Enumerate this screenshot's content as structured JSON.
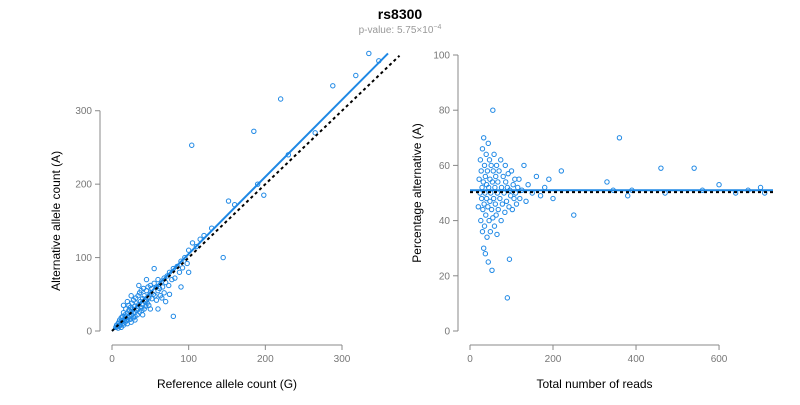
{
  "title": "rs8300",
  "subtitle": {
    "prefix": "p-value: 5.75×10",
    "exponent": "−4"
  },
  "colors": {
    "points": "#1e88e5",
    "fit_line": "#1e88e5",
    "reference_line": "#000000",
    "axis": "#888888"
  },
  "chart_data": [
    {
      "type": "scatter",
      "xlabel": "Reference allele count (G)",
      "ylabel": "Alternative allele count (A)",
      "xlim": [
        0,
        360
      ],
      "ylim": [
        0,
        380
      ],
      "xticks": [
        0,
        100,
        200,
        300
      ],
      "yticks": [
        0,
        100,
        200,
        300
      ],
      "grid": false,
      "points": [
        [
          5,
          5
        ],
        [
          6,
          8
        ],
        [
          7,
          6
        ],
        [
          8,
          10
        ],
        [
          8,
          4
        ],
        [
          9,
          12
        ],
        [
          10,
          7
        ],
        [
          10,
          15
        ],
        [
          11,
          9
        ],
        [
          12,
          18
        ],
        [
          12,
          5
        ],
        [
          13,
          14
        ],
        [
          14,
          20
        ],
        [
          14,
          10
        ],
        [
          15,
          8
        ],
        [
          15,
          25
        ],
        [
          16,
          16
        ],
        [
          17,
          12
        ],
        [
          17,
          22
        ],
        [
          18,
          19
        ],
        [
          18,
          30
        ],
        [
          19,
          14
        ],
        [
          20,
          24
        ],
        [
          20,
          10
        ],
        [
          21,
          18
        ],
        [
          22,
          28
        ],
        [
          22,
          35
        ],
        [
          23,
          20
        ],
        [
          24,
          16
        ],
        [
          24,
          32
        ],
        [
          25,
          26
        ],
        [
          25,
          12
        ],
        [
          26,
          38
        ],
        [
          26,
          22
        ],
        [
          27,
          30
        ],
        [
          28,
          18
        ],
        [
          28,
          42
        ],
        [
          29,
          25
        ],
        [
          30,
          34
        ],
        [
          30,
          20
        ],
        [
          31,
          45
        ],
        [
          32,
          28
        ],
        [
          32,
          38
        ],
        [
          33,
          22
        ],
        [
          34,
          48
        ],
        [
          34,
          30
        ],
        [
          35,
          36
        ],
        [
          36,
          26
        ],
        [
          36,
          52
        ],
        [
          37,
          40
        ],
        [
          38,
          32
        ],
        [
          38,
          55
        ],
        [
          39,
          28
        ],
        [
          40,
          44
        ],
        [
          40,
          36
        ],
        [
          41,
          58
        ],
        [
          42,
          30
        ],
        [
          42,
          48
        ],
        [
          43,
          40
        ],
        [
          44,
          34
        ],
        [
          45,
          55
        ],
        [
          45,
          42
        ],
        [
          46,
          38
        ],
        [
          47,
          60
        ],
        [
          48,
          45
        ],
        [
          48,
          35
        ],
        [
          50,
          52
        ],
        [
          50,
          62
        ],
        [
          52,
          44
        ],
        [
          52,
          58
        ],
        [
          54,
          50
        ],
        [
          55,
          65
        ],
        [
          56,
          48
        ],
        [
          58,
          60
        ],
        [
          58,
          42
        ],
        [
          60,
          55
        ],
        [
          60,
          70
        ],
        [
          62,
          58
        ],
        [
          63,
          48
        ],
        [
          65,
          68
        ],
        [
          66,
          60
        ],
        [
          68,
          72
        ],
        [
          68,
          52
        ],
        [
          70,
          66
        ],
        [
          72,
          75
        ],
        [
          74,
          62
        ],
        [
          75,
          80
        ],
        [
          78,
          70
        ],
        [
          80,
          85
        ],
        [
          82,
          72
        ],
        [
          85,
          88
        ],
        [
          88,
          80
        ],
        [
          90,
          95
        ],
        [
          92,
          86
        ],
        [
          95,
          100
        ],
        [
          98,
          92
        ],
        [
          100,
          110
        ],
        [
          105,
          120
        ],
        [
          110,
          115
        ],
        [
          115,
          125
        ],
        [
          120,
          130
        ],
        [
          130,
          140
        ],
        [
          60,
          30
        ],
        [
          70,
          40
        ],
        [
          80,
          20
        ],
        [
          90,
          60
        ],
        [
          100,
          80
        ],
        [
          55,
          85
        ],
        [
          45,
          70
        ],
        [
          35,
          62
        ],
        [
          25,
          48
        ],
        [
          20,
          40
        ],
        [
          15,
          35
        ],
        [
          30,
          15
        ],
        [
          40,
          22
        ],
        [
          50,
          30
        ],
        [
          65,
          45
        ],
        [
          75,
          50
        ],
        [
          104,
          253
        ],
        [
          145,
          100
        ],
        [
          152,
          177
        ],
        [
          160,
          172
        ],
        [
          185,
          272
        ],
        [
          190,
          200
        ],
        [
          198,
          185
        ],
        [
          220,
          316
        ],
        [
          230,
          240
        ],
        [
          265,
          270
        ],
        [
          288,
          334
        ],
        [
          318,
          348
        ],
        [
          335,
          378
        ],
        [
          348,
          368
        ]
      ],
      "fit_line": [
        [
          0,
          0
        ],
        [
          360,
          378
        ]
      ],
      "reference_line": [
        [
          0,
          0
        ],
        [
          375,
          375
        ]
      ]
    },
    {
      "type": "scatter",
      "xlabel": "Total number of reads",
      "ylabel": "Percentage alternative (A)",
      "xlim": [
        0,
        730
      ],
      "ylim": [
        0,
        100
      ],
      "xticks": [
        0,
        200,
        400,
        600
      ],
      "yticks": [
        0,
        20,
        40,
        60,
        80,
        100
      ],
      "grid": false,
      "points": [
        [
          20,
          45
        ],
        [
          22,
          55
        ],
        [
          24,
          50
        ],
        [
          25,
          62
        ],
        [
          26,
          40
        ],
        [
          27,
          58
        ],
        [
          28,
          48
        ],
        [
          29,
          52
        ],
        [
          30,
          66
        ],
        [
          30,
          36
        ],
        [
          31,
          44
        ],
        [
          32,
          54
        ],
        [
          33,
          70
        ],
        [
          33,
          30
        ],
        [
          34,
          46
        ],
        [
          35,
          60
        ],
        [
          35,
          38
        ],
        [
          36,
          50
        ],
        [
          37,
          56
        ],
        [
          37,
          28
        ],
        [
          38,
          42
        ],
        [
          39,
          64
        ],
        [
          40,
          48
        ],
        [
          40,
          53
        ],
        [
          41,
          34
        ],
        [
          42,
          58
        ],
        [
          43,
          45
        ],
        [
          44,
          68
        ],
        [
          44,
          25
        ],
        [
          45,
          52
        ],
        [
          46,
          40
        ],
        [
          47,
          62
        ],
        [
          48,
          47
        ],
        [
          48,
          55
        ],
        [
          49,
          36
        ],
        [
          50,
          50
        ],
        [
          51,
          60
        ],
        [
          52,
          44
        ],
        [
          53,
          22
        ],
        [
          54,
          54
        ],
        [
          55,
          80
        ],
        [
          55,
          41
        ],
        [
          56,
          58
        ],
        [
          57,
          48
        ],
        [
          58,
          64
        ],
        [
          59,
          38
        ],
        [
          60,
          52
        ],
        [
          61,
          46
        ],
        [
          62,
          56
        ],
        [
          63,
          42
        ],
        [
          64,
          60
        ],
        [
          65,
          35
        ],
        [
          66,
          50
        ],
        [
          67,
          54
        ],
        [
          68,
          44
        ],
        [
          70,
          58
        ],
        [
          72,
          48
        ],
        [
          74,
          62
        ],
        [
          75,
          40
        ],
        [
          76,
          52
        ],
        [
          78,
          46
        ],
        [
          80,
          56
        ],
        [
          82,
          50
        ],
        [
          84,
          43
        ],
        [
          85,
          60
        ],
        [
          86,
          54
        ],
        [
          88,
          47
        ],
        [
          90,
          12
        ],
        [
          90,
          52
        ],
        [
          92,
          57
        ],
        [
          94,
          45
        ],
        [
          95,
          26
        ],
        [
          96,
          51
        ],
        [
          98,
          49
        ],
        [
          100,
          58
        ],
        [
          102,
          44
        ],
        [
          104,
          53
        ],
        [
          106,
          48
        ],
        [
          108,
          55
        ],
        [
          110,
          50
        ],
        [
          112,
          46
        ],
        [
          115,
          52
        ],
        [
          118,
          55
        ],
        [
          120,
          48
        ],
        [
          125,
          51
        ],
        [
          130,
          60
        ],
        [
          135,
          47
        ],
        [
          140,
          53
        ],
        [
          150,
          50
        ],
        [
          160,
          56
        ],
        [
          170,
          49
        ],
        [
          180,
          52
        ],
        [
          190,
          55
        ],
        [
          200,
          48
        ],
        [
          220,
          58
        ],
        [
          250,
          42
        ],
        [
          330,
          54
        ],
        [
          345,
          51
        ],
        [
          360,
          70
        ],
        [
          380,
          49
        ],
        [
          390,
          51
        ],
        [
          460,
          59
        ],
        [
          470,
          50
        ],
        [
          540,
          59
        ],
        [
          560,
          51
        ],
        [
          600,
          53
        ],
        [
          640,
          50
        ],
        [
          670,
          51
        ],
        [
          700,
          52
        ],
        [
          710,
          50
        ]
      ],
      "fit_line": [
        [
          0,
          51
        ],
        [
          730,
          51
        ]
      ],
      "reference_line": [
        [
          0,
          50.3
        ],
        [
          730,
          50.3
        ]
      ]
    }
  ]
}
